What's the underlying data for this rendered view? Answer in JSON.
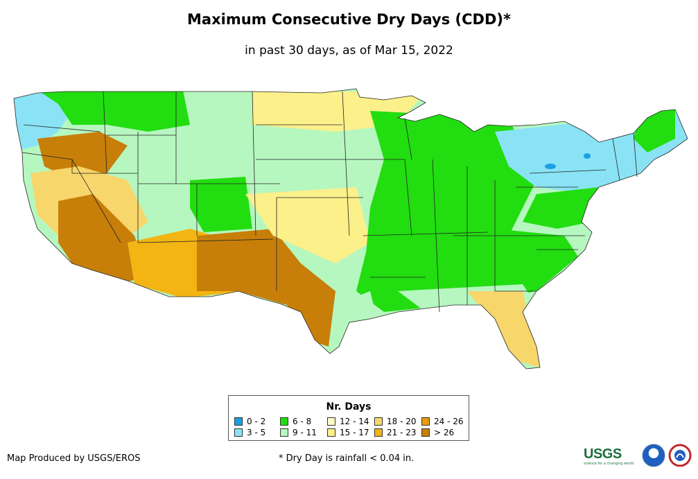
{
  "title": "Maximum Consecutive Dry Days (CDD)*",
  "subtitle": "in past 30 days, as of Mar 15, 2022",
  "legend": {
    "title": "Nr. Days",
    "items": [
      {
        "label": "0 - 2",
        "color": "#1aa0e6"
      },
      {
        "label": "3 - 5",
        "color": "#8ae3f5"
      },
      {
        "label": "6 - 8",
        "color": "#22dd10"
      },
      {
        "label": "9 - 11",
        "color": "#b6f7c0"
      },
      {
        "label": "12 - 14",
        "color": "#fffdc8"
      },
      {
        "label": "15 - 17",
        "color": "#fbf08a"
      },
      {
        "label": "18 - 20",
        "color": "#f7d66c"
      },
      {
        "label": "21 - 23",
        "color": "#f3b514"
      },
      {
        "label": "24 - 26",
        "color": "#e89a10"
      },
      {
        "label": "> 26",
        "color": "#c77f0a"
      }
    ]
  },
  "credit": "Map Produced by USGS/EROS",
  "footnote": "* Dry Day is rainfall < 0.04 in.",
  "logos": {
    "usgs": "USGS",
    "usgs_tagline": "science for a changing world"
  }
}
